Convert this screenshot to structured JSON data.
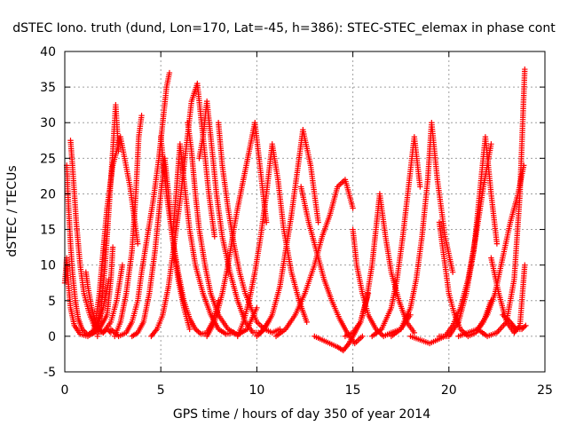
{
  "chart_data": {
    "type": "scatter",
    "title": "dSTEC Iono. truth (dund, Lon=170, Lat=-45, h=386): STEC-STEC_elemax in phase cont",
    "xlabel": "GPS time / hours of day 350 of year 2014",
    "ylabel": "dSTEC  / TECUs",
    "xlim": [
      0,
      25
    ],
    "ylim": [
      -5,
      40
    ],
    "xticks": [
      0,
      5,
      10,
      15,
      20,
      25
    ],
    "yticks": [
      -5,
      0,
      5,
      10,
      15,
      20,
      25,
      30,
      35,
      40
    ],
    "grid": true,
    "legend": "none",
    "marker": "plus",
    "color": "#ff0000",
    "series": [
      {
        "x": [
          0.0,
          0.05,
          0.1,
          0.2,
          0.3,
          0.5,
          0.8,
          1.2,
          1.8,
          2.2,
          2.4,
          2.5
        ],
        "y": [
          7.5,
          9,
          11,
          7,
          4,
          1.5,
          0.3,
          0,
          1,
          3,
          8,
          12.5
        ]
      },
      {
        "x": [
          0.1,
          0.2,
          0.3,
          0.4,
          0.55,
          0.7,
          0.9,
          1.2,
          1.6,
          2.0,
          2.3
        ],
        "y": [
          24,
          18,
          13,
          9,
          5,
          2.5,
          1,
          0.2,
          1,
          4,
          8
        ]
      },
      {
        "x": [
          0.3,
          0.4,
          0.5,
          0.6,
          0.8,
          1.0,
          1.3,
          1.6,
          2.0,
          2.4,
          2.7,
          3.0
        ],
        "y": [
          27.5,
          24,
          20,
          16,
          10,
          6,
          3,
          1,
          0.5,
          2,
          5,
          10
        ]
      },
      {
        "x": [
          1.1,
          1.2,
          1.4,
          1.6,
          1.8,
          2.0,
          2.2,
          2.4
        ],
        "y": [
          9,
          7,
          4,
          2,
          1,
          0.5,
          1,
          0.5
        ]
      },
      {
        "x": [
          1.5,
          1.6,
          1.8,
          2.0,
          2.2,
          2.5,
          2.9,
          3.4,
          3.8
        ],
        "y": [
          0.5,
          2,
          6,
          12,
          18,
          24,
          28,
          21,
          13
        ]
      },
      {
        "x": [
          1.7,
          1.9,
          2.1,
          2.3,
          2.5,
          2.65,
          2.8
        ],
        "y": [
          0,
          4,
          10,
          18,
          26,
          32.5,
          26
        ]
      },
      {
        "x": [
          2.4,
          2.8,
          3.2,
          3.5,
          3.8,
          4.0,
          4.3,
          4.6,
          4.9,
          5.1,
          5.3,
          5.45
        ],
        "y": [
          1,
          0,
          0.5,
          2,
          5,
          9,
          14,
          19,
          25,
          30,
          35,
          37
        ]
      },
      {
        "x": [
          2.6,
          2.9,
          3.2,
          3.5,
          3.7,
          3.85,
          4.0
        ],
        "y": [
          0,
          2,
          6,
          12,
          20,
          28,
          31
        ]
      },
      {
        "x": [
          3.5,
          3.8,
          4.1,
          4.4,
          4.7,
          5.0,
          5.2,
          5.4,
          5.6,
          5.9,
          6.2,
          6.5
        ],
        "y": [
          0,
          0.5,
          2,
          6,
          12,
          20,
          25,
          20,
          14,
          8,
          4,
          1
        ]
      },
      {
        "x": [
          4.5,
          4.8,
          5.1,
          5.4,
          5.7,
          6.0,
          6.3,
          6.6,
          6.9,
          7.2,
          7.5,
          7.8
        ],
        "y": [
          0,
          1,
          3,
          7,
          13,
          19,
          26,
          33,
          35.5,
          28,
          20,
          14
        ]
      },
      {
        "x": [
          5.0,
          5.3,
          5.6,
          5.9,
          6.2,
          6.5,
          6.8,
          7.1,
          7.4,
          7.7,
          8.0
        ],
        "y": [
          28,
          20,
          14,
          9,
          5,
          2.5,
          1,
          0.3,
          0.5,
          2,
          5
        ]
      },
      {
        "x": [
          5.6,
          5.8,
          6.0,
          6.2,
          6.5,
          6.8,
          7.2,
          7.6,
          8.0,
          8.4,
          8.8
        ],
        "y": [
          14,
          20,
          27,
          22,
          15,
          10,
          6,
          3,
          1,
          0.3,
          0.5
        ]
      },
      {
        "x": [
          6.4,
          6.6,
          6.8,
          7.0,
          7.3,
          7.6,
          8.0,
          8.5,
          9.0,
          9.5,
          10.0
        ],
        "y": [
          30,
          26,
          20,
          15,
          10,
          6,
          3,
          1,
          0.2,
          1,
          4
        ]
      },
      {
        "x": [
          7.0,
          7.2,
          7.4,
          7.6,
          7.9,
          8.2,
          8.6,
          9.0,
          9.4,
          9.8,
          10.2,
          10.6
        ],
        "y": [
          25,
          28,
          33,
          28,
          20,
          14,
          9,
          5,
          2,
          0.5,
          0.5,
          2
        ]
      },
      {
        "x": [
          7.4,
          7.8,
          8.2,
          8.5,
          8.8,
          9.0,
          9.3,
          9.6,
          9.9,
          10.2,
          10.5
        ],
        "y": [
          0,
          2,
          6,
          10,
          15,
          18,
          22,
          26,
          30,
          23,
          16
        ]
      },
      {
        "x": [
          8.0,
          8.2,
          8.5,
          8.8,
          9.1,
          9.4,
          9.7,
          10.0,
          10.4,
          10.8,
          11.2
        ],
        "y": [
          30,
          24,
          18,
          13,
          9,
          6,
          4,
          2,
          1,
          0.5,
          1
        ]
      },
      {
        "x": [
          9.0,
          9.3,
          9.6,
          9.9,
          10.2,
          10.5,
          10.8,
          11.1,
          11.4,
          11.8,
          12.2,
          12.6
        ],
        "y": [
          0,
          2,
          5,
          9,
          14,
          20,
          27,
          22,
          15,
          9,
          5,
          2
        ]
      },
      {
        "x": [
          10.0,
          10.4,
          10.8,
          11.2,
          11.5,
          11.8,
          12.1,
          12.4,
          12.8,
          13.2
        ],
        "y": [
          0,
          1,
          3,
          7,
          12,
          17,
          23,
          29,
          24,
          16
        ]
      },
      {
        "x": [
          11.0,
          11.5,
          12.0,
          12.5,
          13.0,
          13.4,
          13.8,
          14.2,
          14.6,
          15.0
        ],
        "y": [
          0,
          1,
          3,
          6,
          10,
          14,
          17,
          21,
          22,
          18
        ]
      },
      {
        "x": [
          12.3,
          12.7,
          13.1,
          13.5,
          13.9,
          14.3,
          14.7,
          15.1,
          15.5
        ],
        "y": [
          21,
          16,
          12,
          8,
          5,
          2.5,
          0.5,
          -1,
          0
        ]
      },
      {
        "x": [
          13.0,
          13.4,
          13.8,
          14.2,
          14.5,
          14.8,
          15.0,
          15.4,
          15.8
        ],
        "y": [
          0,
          -0.5,
          -1,
          -1.5,
          -2,
          -1,
          0,
          2,
          6
        ]
      },
      {
        "x": [
          14.6,
          15.0,
          15.4,
          15.7,
          16.0,
          16.2,
          16.4,
          16.7,
          17.0,
          17.4,
          17.8,
          18.2
        ],
        "y": [
          0,
          0.5,
          2,
          5,
          10,
          15,
          20,
          14,
          9,
          5,
          2,
          0.5
        ]
      },
      {
        "x": [
          15.0,
          15.2,
          15.5,
          15.8,
          16.2,
          16.6,
          17.0,
          17.5,
          18.0
        ],
        "y": [
          15,
          10,
          6,
          3,
          1,
          0,
          0.5,
          1,
          3
        ]
      },
      {
        "x": [
          16.0,
          16.5,
          17.0,
          17.3,
          17.6,
          17.9,
          18.2,
          18.5
        ],
        "y": [
          0,
          1,
          4,
          8,
          14,
          21,
          28,
          21
        ]
      },
      {
        "x": [
          17.0,
          17.5,
          18.0,
          18.3,
          18.6,
          18.9,
          19.1,
          19.4,
          19.8,
          20.2
        ],
        "y": [
          0,
          1,
          4,
          8,
          14,
          22,
          30,
          22,
          14,
          9
        ]
      },
      {
        "x": [
          18.0,
          18.5,
          19.0,
          19.4,
          19.8,
          20.2,
          20.6,
          21.0,
          21.4,
          21.8,
          22.2
        ],
        "y": [
          0,
          -0.5,
          -1,
          -0.5,
          0,
          1.5,
          4,
          8,
          14,
          21,
          27
        ]
      },
      {
        "x": [
          19.5,
          19.8,
          20.0,
          20.3,
          20.6,
          21.0,
          21.4,
          21.8,
          22.2
        ],
        "y": [
          16,
          10,
          6,
          3,
          1,
          0,
          0.5,
          2,
          5
        ]
      },
      {
        "x": [
          19.5,
          20.0,
          20.5,
          20.9,
          21.3,
          21.6,
          21.9,
          22.2,
          22.5
        ],
        "y": [
          0,
          0,
          2,
          6,
          12,
          20,
          28,
          20,
          13
        ]
      },
      {
        "x": [
          20.5,
          21.0,
          21.5,
          22.0,
          22.4,
          22.8,
          23.2,
          23.6,
          23.9
        ],
        "y": [
          0,
          0.5,
          1,
          3,
          6,
          11,
          16,
          20,
          24
        ]
      },
      {
        "x": [
          21.5,
          22.0,
          22.5,
          23.0,
          23.4,
          23.7,
          23.95
        ],
        "y": [
          1,
          0,
          0.5,
          2,
          8,
          20,
          37.5
        ]
      },
      {
        "x": [
          22.2,
          22.6,
          23.0,
          23.4,
          23.7,
          23.95
        ],
        "y": [
          11,
          6,
          2,
          0.5,
          1.5,
          10
        ]
      },
      {
        "x": [
          22.8,
          23.2,
          23.5,
          23.8,
          24.0
        ],
        "y": [
          3,
          2,
          1,
          1,
          1.5
        ]
      }
    ]
  }
}
